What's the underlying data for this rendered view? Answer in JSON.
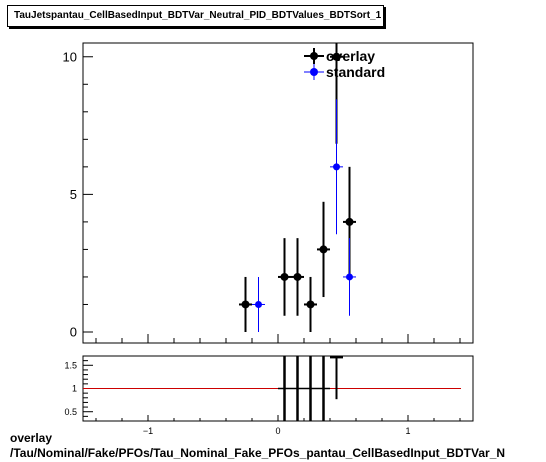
{
  "header": {
    "title": "TauJetspantau_CellBasedInput_BDTVar_Neutral_PID_BDTValues_BDTSort_1"
  },
  "caption": {
    "line1": "overlay",
    "line2": "/Tau/Nominal/Fake/PFOs/Tau_Nominal_Fake_PFOs_pantau_CellBasedInput_BDTVar_N"
  },
  "colors": {
    "overlay": "#000000",
    "standard": "#0000ff",
    "ratio_line": "#cc0000"
  },
  "chart_data": [
    {
      "type": "scatter",
      "panel": "main",
      "xlim": [
        -1.5,
        1.5
      ],
      "ylim": [
        -0.4,
        10.5
      ],
      "x_ticks": [
        -1,
        0,
        1
      ],
      "x_tick_labels": [
        "",
        "",
        ""
      ],
      "y_ticks": [
        0,
        5,
        10
      ],
      "y_tick_labels": [
        "0",
        "5",
        "10"
      ],
      "legend": {
        "placement": "top-right",
        "entries": [
          "overlay",
          "standard"
        ]
      },
      "series": [
        {
          "name": "overlay",
          "color": "#000000",
          "points": [
            {
              "x": -0.25,
              "y": 1,
              "err": 1.0
            },
            {
              "x": 0.05,
              "y": 2,
              "err": 1.41
            },
            {
              "x": 0.15,
              "y": 2,
              "err": 1.41
            },
            {
              "x": 0.25,
              "y": 1,
              "err": 1.0
            },
            {
              "x": 0.35,
              "y": 3,
              "err": 1.73
            },
            {
              "x": 0.45,
              "y": 10,
              "err": 3.16
            },
            {
              "x": 0.55,
              "y": 4,
              "err": 2.0
            }
          ]
        },
        {
          "name": "standard",
          "color": "#0000ff",
          "points": [
            {
              "x": -0.15,
              "y": 1,
              "err": 1.0
            },
            {
              "x": 0.45,
              "y": 6,
              "err": 2.45
            },
            {
              "x": 0.55,
              "y": 2,
              "err": 1.41
            }
          ]
        }
      ]
    },
    {
      "type": "scatter",
      "panel": "ratio",
      "xlim": [
        -1.5,
        1.5
      ],
      "ylim": [
        0.3,
        1.7
      ],
      "x_ticks": [
        -1,
        0,
        1
      ],
      "x_tick_labels": [
        "−1",
        "0",
        "1"
      ],
      "y_ticks": [
        0.5,
        1,
        1.5
      ],
      "y_tick_labels": [
        "0.5",
        "1",
        "1.5"
      ],
      "reference_line": 1,
      "series": [
        {
          "name": "overlay",
          "color": "#000000",
          "points": [
            {
              "x": 0.05,
              "y": null,
              "err": null
            },
            {
              "x": 0.15,
              "y": null,
              "err": null
            },
            {
              "x": 0.25,
              "y": null,
              "err": null
            },
            {
              "x": 0.35,
              "y": null,
              "err": null
            },
            {
              "x": 0.45,
              "y": 1.67,
              "err": 0.9
            }
          ]
        }
      ]
    }
  ]
}
